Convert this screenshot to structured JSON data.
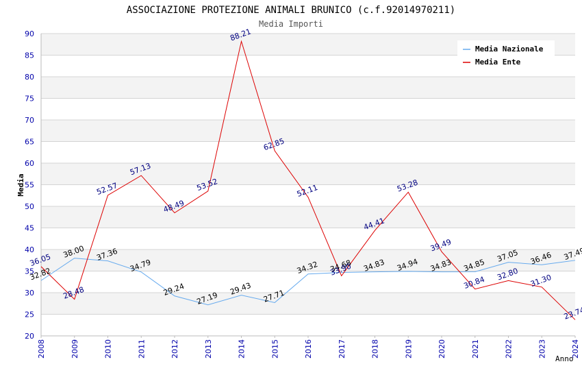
{
  "chart_data": {
    "type": "line",
    "title": "ASSOCIAZIONE PROTEZIONE ANIMALI BRUNICO (c.f.92014970211)",
    "subtitle": "Media Importi",
    "xlabel": "Anno",
    "ylabel": "Media",
    "ylim": [
      20,
      90
    ],
    "yticks": [
      20,
      25,
      30,
      35,
      40,
      45,
      50,
      55,
      60,
      65,
      70,
      75,
      80,
      85,
      90
    ],
    "grid": true,
    "legend_position": "top-right",
    "x": [
      "2008",
      "2009",
      "2010",
      "2011",
      "2012",
      "2013",
      "2014",
      "2015",
      "2016",
      "2017",
      "2018",
      "2019",
      "2020",
      "2021",
      "2022",
      "2023",
      "2024"
    ],
    "series": [
      {
        "name": "Media Nazionale",
        "color": "#66aaee",
        "values": [
          32.82,
          38.0,
          37.36,
          34.79,
          29.24,
          27.19,
          29.43,
          27.71,
          34.32,
          34.68,
          34.83,
          34.94,
          34.83,
          34.85,
          37.05,
          36.46,
          37.49
        ],
        "labels": [
          "32.82",
          "38.00",
          "37.36",
          "34.79",
          "29.24",
          "27.19",
          "29.43",
          "27.71",
          "34.32",
          "34.68",
          "34.83",
          "34.94",
          "34.83",
          "34.85",
          "37.05",
          "36.46",
          "37.49"
        ]
      },
      {
        "name": "Media Ente",
        "color": "#dd0000",
        "values": [
          36.05,
          28.48,
          52.57,
          57.13,
          48.49,
          53.52,
          88.21,
          62.85,
          52.11,
          33.9,
          44.41,
          53.28,
          39.49,
          30.84,
          32.8,
          31.3,
          23.74
        ],
        "labels": [
          "36.05",
          "28.48",
          "52.57",
          "57.13",
          "48.49",
          "53.52",
          "88.21",
          "62.85",
          "52.11",
          "33.90",
          "44.41",
          "53.28",
          "39.49",
          "30.84",
          "32.80",
          "31.30",
          "23.74"
        ]
      }
    ]
  }
}
